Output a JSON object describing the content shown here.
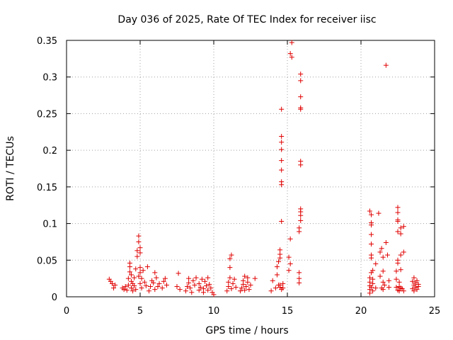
{
  "chart_data": {
    "type": "scatter",
    "title": "Day 036 of 2025, Rate Of TEC Index for receiver iisc",
    "xlabel": "GPS time / hours",
    "ylabel": "ROTI / TECUs",
    "xlim": [
      0,
      25
    ],
    "ylim": [
      0,
      0.35
    ],
    "xticks": [
      0,
      5,
      10,
      15,
      20,
      25
    ],
    "xtick_labels": [
      "0",
      "5",
      "10",
      "15",
      "20",
      "25"
    ],
    "yticks": [
      0,
      0.05,
      0.1,
      0.15,
      0.2,
      0.25,
      0.3,
      0.35
    ],
    "ytick_labels": [
      "0",
      "0.05",
      "0.1",
      "0.15",
      "0.2",
      "0.25",
      "0.3",
      "0.35"
    ],
    "grid": true,
    "marker": "+",
    "color": "#e00000",
    "series": [
      {
        "name": "ROTI",
        "points": [
          [
            2.9,
            0.024
          ],
          [
            3.0,
            0.021
          ],
          [
            3.1,
            0.018
          ],
          [
            3.2,
            0.012
          ],
          [
            3.3,
            0.016
          ],
          [
            3.8,
            0.012
          ],
          [
            3.9,
            0.01
          ],
          [
            4.0,
            0.014
          ],
          [
            4.1,
            0.009
          ],
          [
            4.2,
            0.016
          ],
          [
            4.2,
            0.025
          ],
          [
            4.3,
            0.034
          ],
          [
            4.3,
            0.041
          ],
          [
            4.3,
            0.046
          ],
          [
            4.4,
            0.012
          ],
          [
            4.4,
            0.021
          ],
          [
            4.4,
            0.03
          ],
          [
            4.5,
            0.008
          ],
          [
            4.5,
            0.018
          ],
          [
            4.6,
            0.015
          ],
          [
            4.6,
            0.026
          ],
          [
            4.7,
            0.038
          ],
          [
            4.7,
            0.01
          ],
          [
            4.8,
            0.055
          ],
          [
            4.8,
            0.063
          ],
          [
            4.9,
            0.028
          ],
          [
            4.9,
            0.075
          ],
          [
            4.9,
            0.083
          ],
          [
            5.0,
            0.06
          ],
          [
            5.0,
            0.067
          ],
          [
            5.0,
            0.04
          ],
          [
            5.0,
            0.033
          ],
          [
            5.0,
            0.018
          ],
          [
            5.1,
            0.025
          ],
          [
            5.1,
            0.012
          ],
          [
            5.2,
            0.036
          ],
          [
            5.3,
            0.02
          ],
          [
            5.4,
            0.015
          ],
          [
            5.5,
            0.041
          ],
          [
            5.6,
            0.008
          ],
          [
            5.7,
            0.014
          ],
          [
            5.8,
            0.022
          ],
          [
            5.9,
            0.019
          ],
          [
            6.0,
            0.033
          ],
          [
            6.0,
            0.01
          ],
          [
            6.1,
            0.026
          ],
          [
            6.2,
            0.014
          ],
          [
            6.3,
            0.018
          ],
          [
            6.5,
            0.012
          ],
          [
            6.6,
            0.021
          ],
          [
            6.7,
            0.025
          ],
          [
            6.8,
            0.016
          ],
          [
            7.5,
            0.014
          ],
          [
            7.6,
            0.032
          ],
          [
            7.7,
            0.01
          ],
          [
            8.1,
            0.008
          ],
          [
            8.2,
            0.014
          ],
          [
            8.3,
            0.019
          ],
          [
            8.3,
            0.025
          ],
          [
            8.4,
            0.012
          ],
          [
            8.5,
            0.006
          ],
          [
            8.6,
            0.022
          ],
          [
            8.7,
            0.016
          ],
          [
            8.8,
            0.026
          ],
          [
            9.0,
            0.009
          ],
          [
            9.0,
            0.018
          ],
          [
            9.1,
            0.013
          ],
          [
            9.2,
            0.024
          ],
          [
            9.3,
            0.011
          ],
          [
            9.3,
            0.006
          ],
          [
            9.4,
            0.021
          ],
          [
            9.5,
            0.015
          ],
          [
            9.6,
            0.009
          ],
          [
            9.6,
            0.026
          ],
          [
            9.7,
            0.017
          ],
          [
            9.8,
            0.012
          ],
          [
            9.9,
            0.006
          ],
          [
            10.0,
            0.003
          ],
          [
            10.9,
            0.008
          ],
          [
            11.0,
            0.014
          ],
          [
            11.0,
            0.02
          ],
          [
            11.1,
            0.026
          ],
          [
            11.1,
            0.04
          ],
          [
            11.1,
            0.052
          ],
          [
            11.2,
            0.057
          ],
          [
            11.2,
            0.011
          ],
          [
            11.3,
            0.018
          ],
          [
            11.4,
            0.024
          ],
          [
            11.5,
            0.013
          ],
          [
            11.8,
            0.008
          ],
          [
            11.9,
            0.012
          ],
          [
            12.0,
            0.017
          ],
          [
            12.0,
            0.022
          ],
          [
            12.1,
            0.028
          ],
          [
            12.1,
            0.009
          ],
          [
            12.2,
            0.014
          ],
          [
            12.3,
            0.02
          ],
          [
            12.3,
            0.026
          ],
          [
            12.4,
            0.01
          ],
          [
            12.5,
            0.016
          ],
          [
            12.8,
            0.025
          ],
          [
            13.9,
            0.008
          ],
          [
            14.0,
            0.022
          ],
          [
            14.2,
            0.012
          ],
          [
            14.3,
            0.03
          ],
          [
            14.3,
            0.041
          ],
          [
            14.4,
            0.016
          ],
          [
            14.4,
            0.048
          ],
          [
            14.5,
            0.053
          ],
          [
            14.5,
            0.058
          ],
          [
            14.5,
            0.064
          ],
          [
            14.5,
            0.016
          ],
          [
            14.5,
            0.013
          ],
          [
            14.6,
            0.01
          ],
          [
            14.6,
            0.103
          ],
          [
            14.6,
            0.153
          ],
          [
            14.6,
            0.157
          ],
          [
            14.6,
            0.173
          ],
          [
            14.6,
            0.186
          ],
          [
            14.6,
            0.201
          ],
          [
            14.6,
            0.211
          ],
          [
            14.6,
            0.219
          ],
          [
            14.6,
            0.256
          ],
          [
            14.7,
            0.018
          ],
          [
            14.7,
            0.012
          ],
          [
            15.1,
            0.036
          ],
          [
            15.1,
            0.054
          ],
          [
            15.2,
            0.079
          ],
          [
            15.2,
            0.045
          ],
          [
            15.2,
            0.332
          ],
          [
            15.3,
            0.327
          ],
          [
            15.3,
            0.347
          ],
          [
            15.8,
            0.025
          ],
          [
            15.8,
            0.033
          ],
          [
            15.8,
            0.019
          ],
          [
            15.8,
            0.089
          ],
          [
            15.8,
            0.094
          ],
          [
            15.9,
            0.104
          ],
          [
            15.9,
            0.111
          ],
          [
            15.9,
            0.116
          ],
          [
            15.9,
            0.12
          ],
          [
            15.9,
            0.18
          ],
          [
            15.9,
            0.185
          ],
          [
            15.9,
            0.256
          ],
          [
            15.9,
            0.258
          ],
          [
            15.9,
            0.273
          ],
          [
            15.9,
            0.295
          ],
          [
            15.9,
            0.304
          ],
          [
            20.6,
            0.005
          ],
          [
            20.6,
            0.01
          ],
          [
            20.6,
            0.015
          ],
          [
            20.6,
            0.02
          ],
          [
            20.6,
            0.026
          ],
          [
            20.6,
            0.117
          ],
          [
            20.7,
            0.112
          ],
          [
            20.7,
            0.101
          ],
          [
            20.7,
            0.098
          ],
          [
            20.7,
            0.085
          ],
          [
            20.7,
            0.072
          ],
          [
            20.7,
            0.057
          ],
          [
            20.7,
            0.053
          ],
          [
            20.7,
            0.033
          ],
          [
            20.7,
            0.013
          ],
          [
            20.8,
            0.008
          ],
          [
            20.8,
            0.018
          ],
          [
            20.8,
            0.024
          ],
          [
            20.8,
            0.036
          ],
          [
            21.0,
            0.045
          ],
          [
            21.0,
            0.012
          ],
          [
            21.2,
            0.114
          ],
          [
            21.3,
            0.028
          ],
          [
            21.3,
            0.061
          ],
          [
            21.4,
            0.066
          ],
          [
            21.4,
            0.012
          ],
          [
            21.5,
            0.02
          ],
          [
            21.5,
            0.035
          ],
          [
            21.5,
            0.054
          ],
          [
            21.5,
            0.01
          ],
          [
            21.6,
            0.016
          ],
          [
            21.7,
            0.074
          ],
          [
            21.7,
            0.316
          ],
          [
            21.8,
            0.057
          ],
          [
            21.9,
            0.022
          ],
          [
            21.9,
            0.013
          ],
          [
            22.4,
            0.013
          ],
          [
            22.4,
            0.024
          ],
          [
            22.4,
            0.035
          ],
          [
            22.5,
            0.009
          ],
          [
            22.5,
            0.046
          ],
          [
            22.5,
            0.05
          ],
          [
            22.5,
            0.089
          ],
          [
            22.5,
            0.103
          ],
          [
            22.5,
            0.105
          ],
          [
            22.5,
            0.115
          ],
          [
            22.5,
            0.122
          ],
          [
            22.6,
            0.014
          ],
          [
            22.6,
            0.02
          ],
          [
            22.6,
            0.008
          ],
          [
            22.7,
            0.012
          ],
          [
            22.7,
            0.037
          ],
          [
            22.7,
            0.057
          ],
          [
            22.7,
            0.086
          ],
          [
            22.7,
            0.094
          ],
          [
            22.8,
            0.011
          ],
          [
            22.9,
            0.096
          ],
          [
            22.9,
            0.061
          ],
          [
            22.9,
            0.008
          ],
          [
            23.5,
            0.011
          ],
          [
            23.5,
            0.021
          ],
          [
            23.6,
            0.026
          ],
          [
            23.6,
            0.016
          ],
          [
            23.6,
            0.008
          ],
          [
            23.7,
            0.013
          ],
          [
            23.7,
            0.019
          ],
          [
            23.8,
            0.01
          ],
          [
            23.8,
            0.022
          ],
          [
            23.9,
            0.014
          ],
          [
            23.9,
            0.017
          ]
        ]
      }
    ]
  }
}
